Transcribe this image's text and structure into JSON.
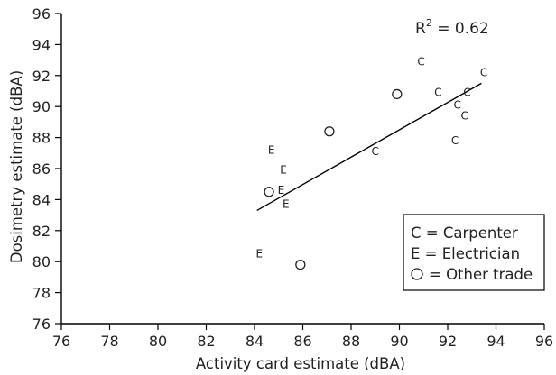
{
  "chart_data": {
    "type": "scatter",
    "xlabel": "Activity card estimate (dBA)",
    "ylabel": "Dosimetry estimate (dBA)",
    "xlim": [
      76,
      96
    ],
    "ylim": [
      76,
      96
    ],
    "xticks": [
      76,
      78,
      80,
      82,
      84,
      86,
      88,
      90,
      92,
      94,
      96
    ],
    "yticks": [
      76,
      78,
      80,
      82,
      84,
      86,
      88,
      90,
      92,
      94,
      96
    ],
    "grid": false,
    "annotation": {
      "base": "R",
      "superscript": "2",
      "rest": " = 0.62"
    },
    "trendline": {
      "x": [
        84.1,
        93.4
      ],
      "y": [
        83.3,
        91.5
      ]
    },
    "series": [
      {
        "marker": "C",
        "points": [
          {
            "x": 90.9,
            "y": 92.9
          },
          {
            "x": 93.5,
            "y": 92.2
          },
          {
            "x": 91.6,
            "y": 90.9
          },
          {
            "x": 92.8,
            "y": 90.9
          },
          {
            "x": 92.4,
            "y": 90.1
          },
          {
            "x": 92.7,
            "y": 89.4
          },
          {
            "x": 89.0,
            "y": 87.1
          },
          {
            "x": 92.3,
            "y": 87.8
          }
        ]
      },
      {
        "marker": "E",
        "points": [
          {
            "x": 84.7,
            "y": 87.2
          },
          {
            "x": 85.2,
            "y": 85.9
          },
          {
            "x": 85.1,
            "y": 84.6
          },
          {
            "x": 85.3,
            "y": 83.7
          },
          {
            "x": 84.2,
            "y": 80.5
          }
        ]
      },
      {
        "marker": "O",
        "points": [
          {
            "x": 89.9,
            "y": 90.8
          },
          {
            "x": 87.1,
            "y": 88.4
          },
          {
            "x": 84.6,
            "y": 84.5
          },
          {
            "x": 85.9,
            "y": 79.8
          }
        ]
      }
    ],
    "legend": {
      "placement": "bottom-right",
      "items": [
        {
          "marker": "C",
          "label": "C = Carpenter"
        },
        {
          "marker": "E",
          "label": "E = Electrician"
        },
        {
          "marker": "O",
          "label": "= Other trade"
        }
      ]
    }
  }
}
